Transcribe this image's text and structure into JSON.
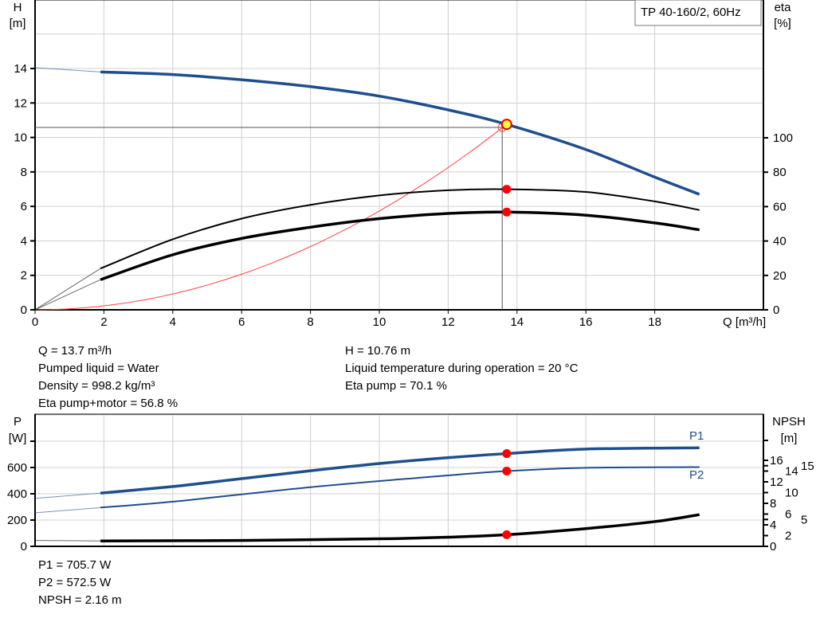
{
  "title": "TP 40-160/2, 60Hz",
  "chart_data": [
    {
      "type": "line",
      "name": "QH / efficiency",
      "xlabel": "Q [m³/h]",
      "ylabel_left": [
        "H",
        "[m]"
      ],
      "ylabel_right": [
        "eta",
        "[%]"
      ],
      "xlim": [
        0,
        20
      ],
      "ylim_left": [
        0,
        18
      ],
      "ylim_right": [
        0,
        100
      ],
      "xticks": [
        0,
        2,
        4,
        6,
        8,
        10,
        12,
        14,
        16,
        18
      ],
      "yticks_left": [
        0,
        2,
        4,
        6,
        8,
        10,
        12,
        14
      ],
      "yticks_right": [
        0,
        20,
        40,
        60,
        80,
        100
      ],
      "grid": true,
      "series": [
        {
          "id": "H",
          "axis": "left",
          "color": "#1f4e8c",
          "x": [
            0,
            1.9,
            4,
            6,
            8,
            10,
            12,
            13.7,
            16,
            18,
            19.3
          ],
          "y": [
            14.05,
            13.8,
            13.65,
            13.35,
            12.95,
            12.4,
            11.6,
            10.76,
            9.3,
            7.7,
            6.7
          ]
        },
        {
          "id": "eta_pump",
          "axis": "right",
          "color": "#000000",
          "x": [
            0,
            1.9,
            4,
            6,
            8,
            10,
            12,
            13.7,
            16,
            18,
            19.3
          ],
          "y": [
            0,
            24,
            41,
            53,
            61,
            66.5,
            69.5,
            70.1,
            68.5,
            63,
            58
          ]
        },
        {
          "id": "eta_pump_motor",
          "axis": "right",
          "color": "#000000",
          "x": [
            0,
            1.9,
            4,
            6,
            8,
            10,
            12,
            13.7,
            16,
            18,
            19.3
          ],
          "y": [
            0,
            17.5,
            32,
            41.5,
            48,
            53,
            56,
            56.8,
            55,
            50.5,
            46.5
          ]
        },
        {
          "id": "system_curve",
          "axis": "left",
          "color": "#ff4040",
          "x": [
            0,
            13.7
          ],
          "y": [
            0,
            10.76
          ]
        }
      ],
      "duty_point": {
        "Q": 13.7,
        "H": 10.76,
        "eta_pump": 70.1,
        "eta_pump_motor": 56.8
      }
    },
    {
      "type": "line",
      "name": "Power / NPSH",
      "ylabel_left": [
        "P",
        "[W]"
      ],
      "ylabel_right": [
        "NPSH",
        "[m]"
      ],
      "xlim": [
        0,
        20
      ],
      "ylim_left": [
        0,
        1000
      ],
      "ylim_right": [
        0,
        24.6
      ],
      "yticks_left": [
        0,
        200,
        400,
        600
      ],
      "yticks_right": [
        0,
        2,
        4,
        5,
        6,
        8,
        10,
        12,
        14,
        15,
        16
      ],
      "grid": true,
      "series": [
        {
          "name": "P1",
          "axis": "left",
          "color": "#1f4e8c",
          "x": [
            0,
            1.9,
            4,
            6,
            8,
            10,
            12,
            13.7,
            16,
            19.3
          ],
          "y": [
            365,
            405,
            455,
            515,
            575,
            630,
            675,
            705.7,
            740,
            750
          ]
        },
        {
          "name": "P2",
          "axis": "left",
          "color": "#1f4e8c",
          "x": [
            0,
            1.9,
            4,
            8,
            12,
            13.7,
            16,
            19.3
          ],
          "y": [
            255,
            295,
            340,
            450,
            540,
            572.5,
            598,
            603
          ]
        },
        {
          "id": "NPSH",
          "axis": "right",
          "color": "#000000",
          "x": [
            0,
            1.9,
            6,
            10,
            12,
            13.7,
            16,
            18,
            19.3
          ],
          "y": [
            1.1,
            1.0,
            1.1,
            1.4,
            1.7,
            2.16,
            3.3,
            4.6,
            5.9
          ]
        }
      ],
      "duty_point": {
        "Q": 13.7,
        "P1": 705.7,
        "P2": 572.5,
        "NPSH": 2.16
      }
    }
  ],
  "info_top_left": [
    "Q = 13.7 m³/h",
    "Pumped liquid = Water",
    "Density = 998.2 kg/m³",
    "Eta pump+motor = 56.8 %"
  ],
  "info_top_right": [
    "H = 10.76 m",
    "Liquid temperature during operation = 20 °C",
    "Eta pump = 70.1 %"
  ],
  "info_bottom": [
    "P1 = 705.7 W",
    "P2 = 572.5 W",
    "NPSH = 2.16 m"
  ]
}
